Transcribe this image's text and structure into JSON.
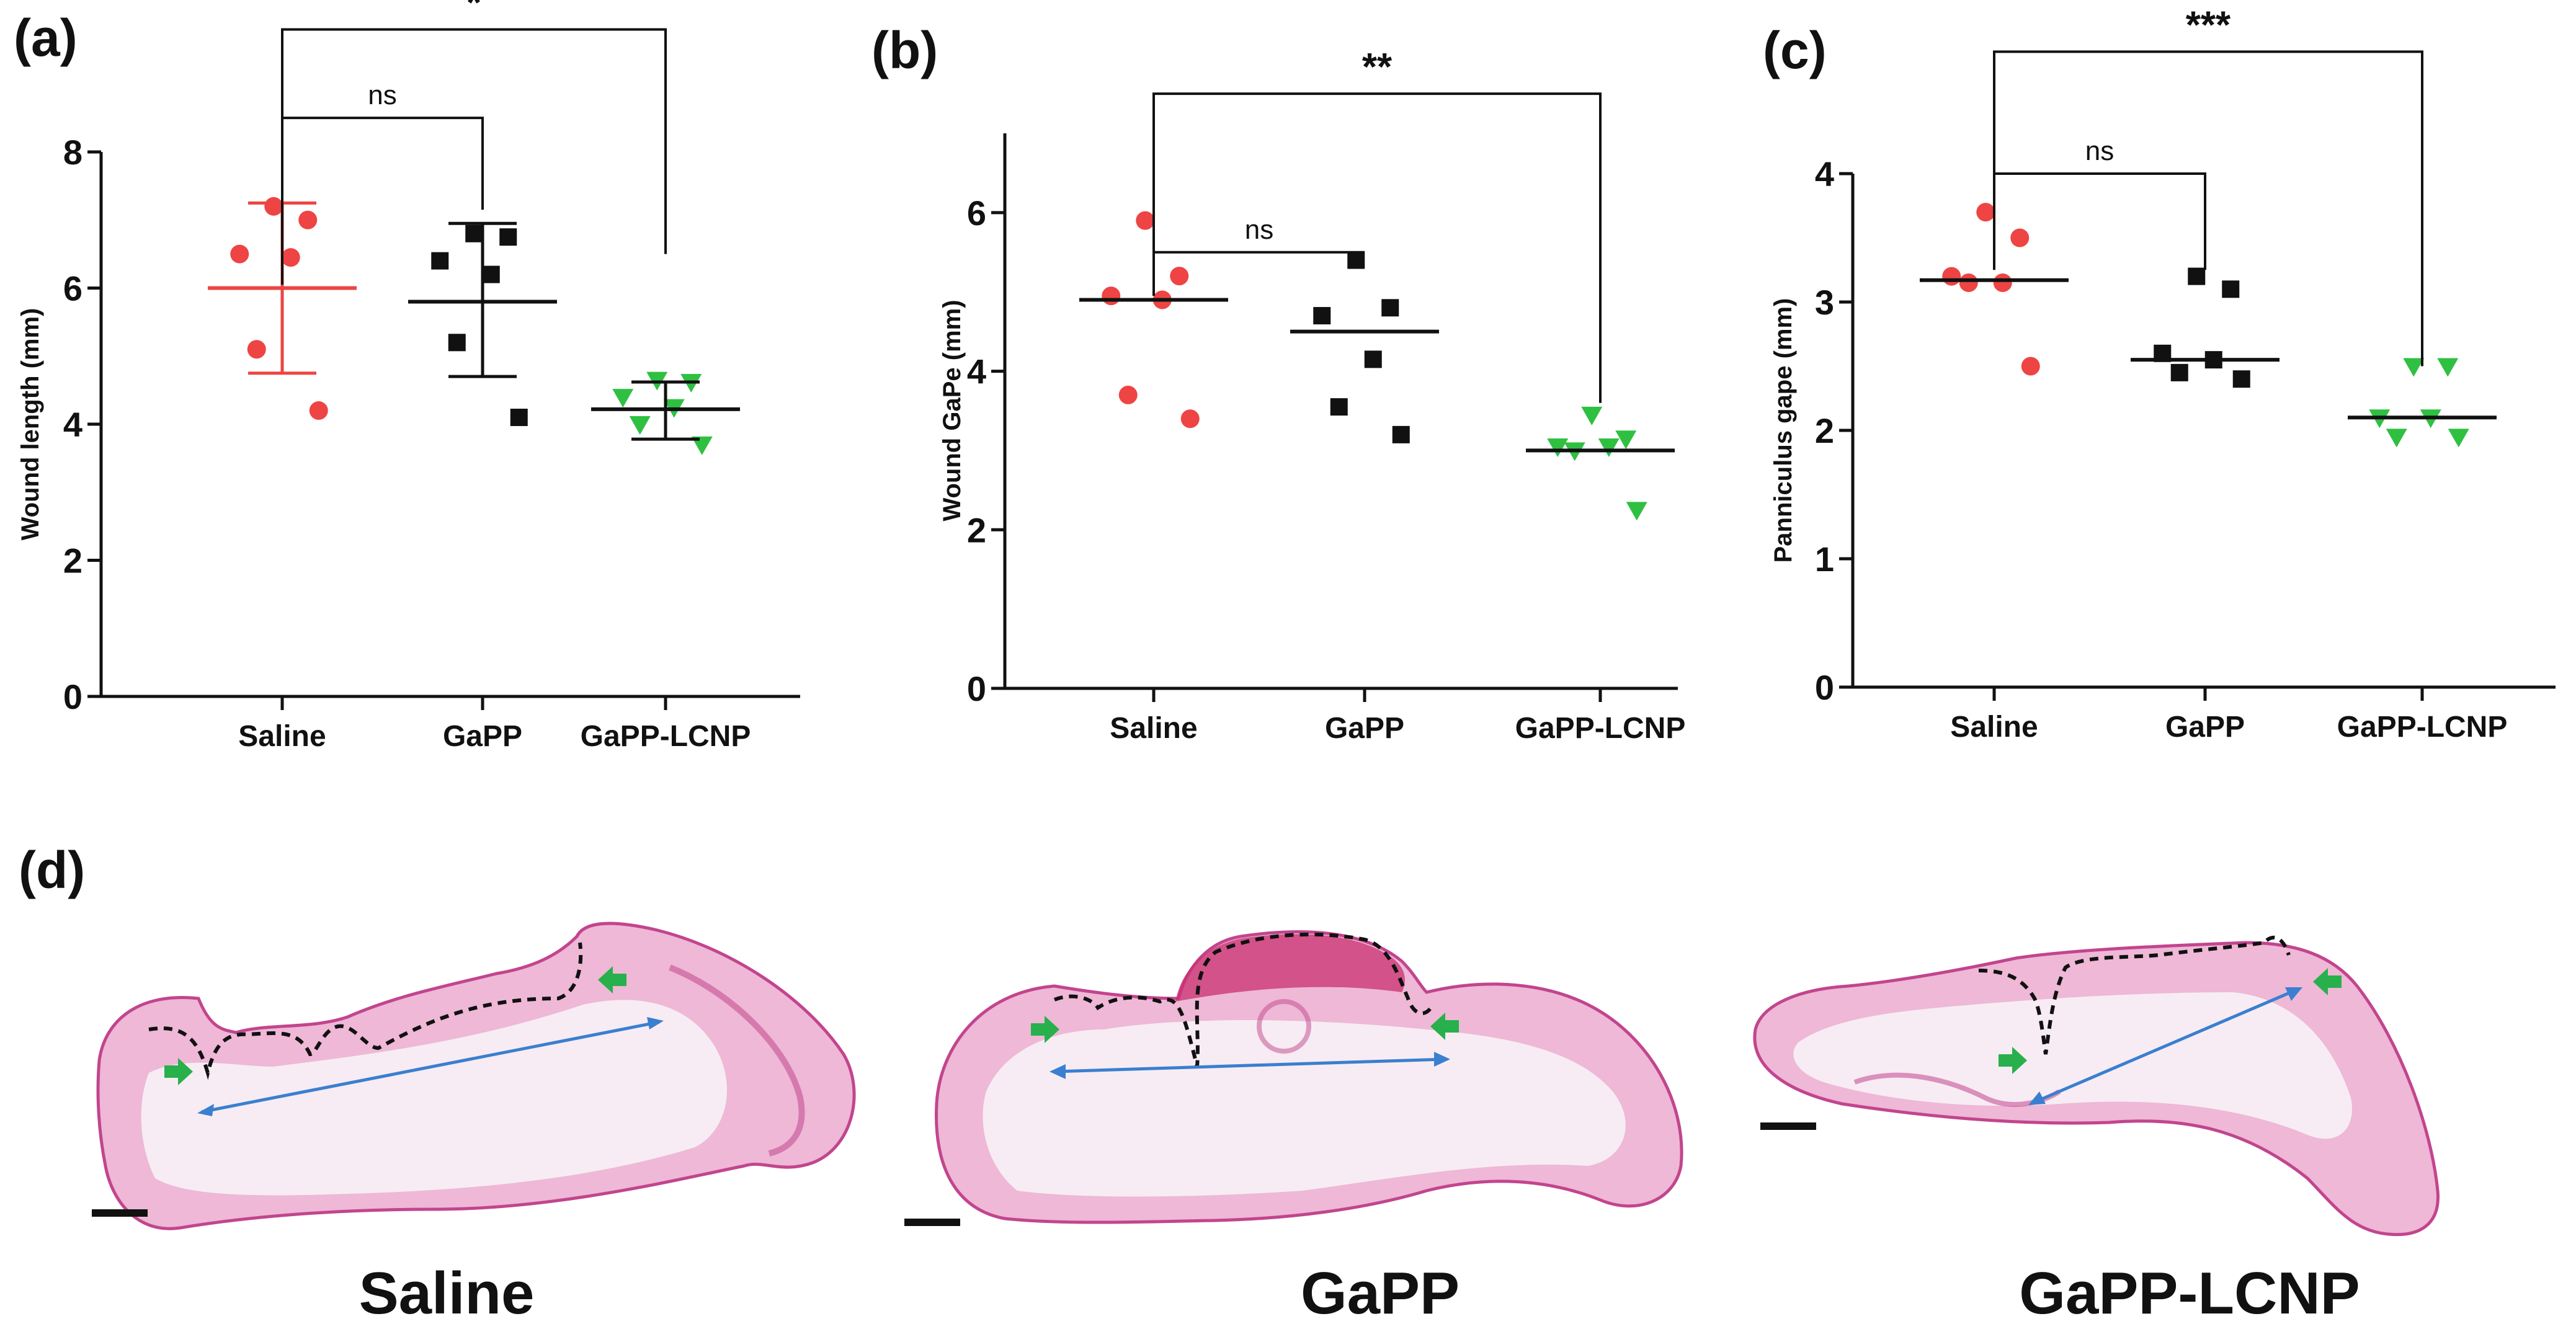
{
  "colors": {
    "saline": "#ee4444",
    "gapp": "#111111",
    "lcnp": "#2fc042",
    "axis": "#111111",
    "tissue_pink": "#e9a2c9",
    "tissue_dark": "#c2458e",
    "scab": "#c8306f",
    "diameter_line": "#3a7fd0",
    "arrow_marker": "#27b04b"
  },
  "chart_data": [
    {
      "panel": "(a)",
      "type": "scatter",
      "ylabel": "Wound length (mm)",
      "ylim": [
        0,
        8
      ],
      "yticks": [
        0,
        2,
        4,
        6,
        8
      ],
      "categories": [
        "Saline",
        "GaPP",
        "GaPP-LCNP"
      ],
      "series": [
        {
          "name": "Saline",
          "marker": "circle",
          "values": [
            7.2,
            7.0,
            6.5,
            6.45,
            5.1,
            4.2
          ],
          "mean": 6.0,
          "err_low": 4.75,
          "err_high": 7.25
        },
        {
          "name": "GaPP",
          "marker": "square",
          "values": [
            6.8,
            6.75,
            6.4,
            6.2,
            5.2,
            4.1
          ],
          "mean": 5.8,
          "err_low": 4.7,
          "err_high": 6.95
        },
        {
          "name": "GaPP-LCNP",
          "marker": "triangle",
          "values": [
            4.65,
            4.62,
            4.4,
            4.25,
            4.0,
            3.7
          ],
          "mean": 4.22,
          "err_low": 3.78,
          "err_high": 4.62
        }
      ],
      "errorbars": true,
      "comparisons": [
        {
          "from": "Saline",
          "to": "GaPP",
          "label": "ns",
          "end_a": 6.05,
          "end_b": 7.15,
          "y": 8.5
        },
        {
          "from": "Saline",
          "to": "GaPP-LCNP",
          "label": "*",
          "end_a": 8.5,
          "end_b": 6.5,
          "y": 9.8
        }
      ]
    },
    {
      "panel": "(b)",
      "type": "scatter",
      "ylabel": "Wound GaPe (mm)",
      "ylim": [
        0,
        7
      ],
      "yticks": [
        0,
        2,
        4,
        6
      ],
      "categories": [
        "Saline",
        "GaPP",
        "GaPP-LCNP"
      ],
      "series": [
        {
          "name": "Saline",
          "marker": "circle",
          "values": [
            5.9,
            5.2,
            4.95,
            4.9,
            3.7,
            3.4
          ],
          "mean": 4.9
        },
        {
          "name": "GaPP",
          "marker": "square",
          "values": [
            5.4,
            4.8,
            4.7,
            4.15,
            3.55,
            3.2
          ],
          "mean": 4.5
        },
        {
          "name": "GaPP-LCNP",
          "marker": "triangle",
          "values": [
            3.45,
            3.15,
            3.05,
            3.05,
            3.0,
            2.25
          ],
          "mean": 3.0
        }
      ],
      "errorbars": false,
      "comparisons": [
        {
          "from": "Saline",
          "to": "GaPP",
          "label": "ns",
          "end_a": 4.95,
          "end_b": 5.5,
          "y": 5.5
        },
        {
          "from": "Saline",
          "to": "GaPP-LCNP",
          "label": "**",
          "end_a": 5.5,
          "end_b": 3.6,
          "y": 7.5
        }
      ]
    },
    {
      "panel": "(c)",
      "type": "scatter",
      "ylabel": "Panniculus gape (mm)",
      "ylim": [
        0,
        4
      ],
      "yticks": [
        0,
        1,
        2,
        3,
        4
      ],
      "categories": [
        "Saline",
        "GaPP",
        "GaPP-LCNP"
      ],
      "series": [
        {
          "name": "Saline",
          "marker": "circle",
          "values": [
            3.7,
            3.5,
            3.2,
            3.15,
            3.15,
            2.5
          ],
          "mean": 3.17
        },
        {
          "name": "GaPP",
          "marker": "square",
          "values": [
            3.2,
            3.1,
            2.6,
            2.55,
            2.45,
            2.4
          ],
          "mean": 2.55
        },
        {
          "name": "GaPP-LCNP",
          "marker": "triangle",
          "values": [
            2.5,
            2.5,
            2.1,
            2.1,
            1.95,
            1.95
          ],
          "mean": 2.1
        }
      ],
      "errorbars": false,
      "comparisons": [
        {
          "from": "Saline",
          "to": "GaPP",
          "label": "ns",
          "end_a": 3.25,
          "end_b": 3.25,
          "y": 4.0
        },
        {
          "from": "Saline",
          "to": "GaPP-LCNP",
          "label": "***",
          "end_a": 3.95,
          "end_b": 2.5,
          "y": 4.95
        }
      ]
    }
  ],
  "histology": {
    "panel_label": "(d)",
    "sections": [
      {
        "label": "Saline"
      },
      {
        "label": "GaPP"
      },
      {
        "label": "GaPP-LCNP"
      }
    ]
  }
}
